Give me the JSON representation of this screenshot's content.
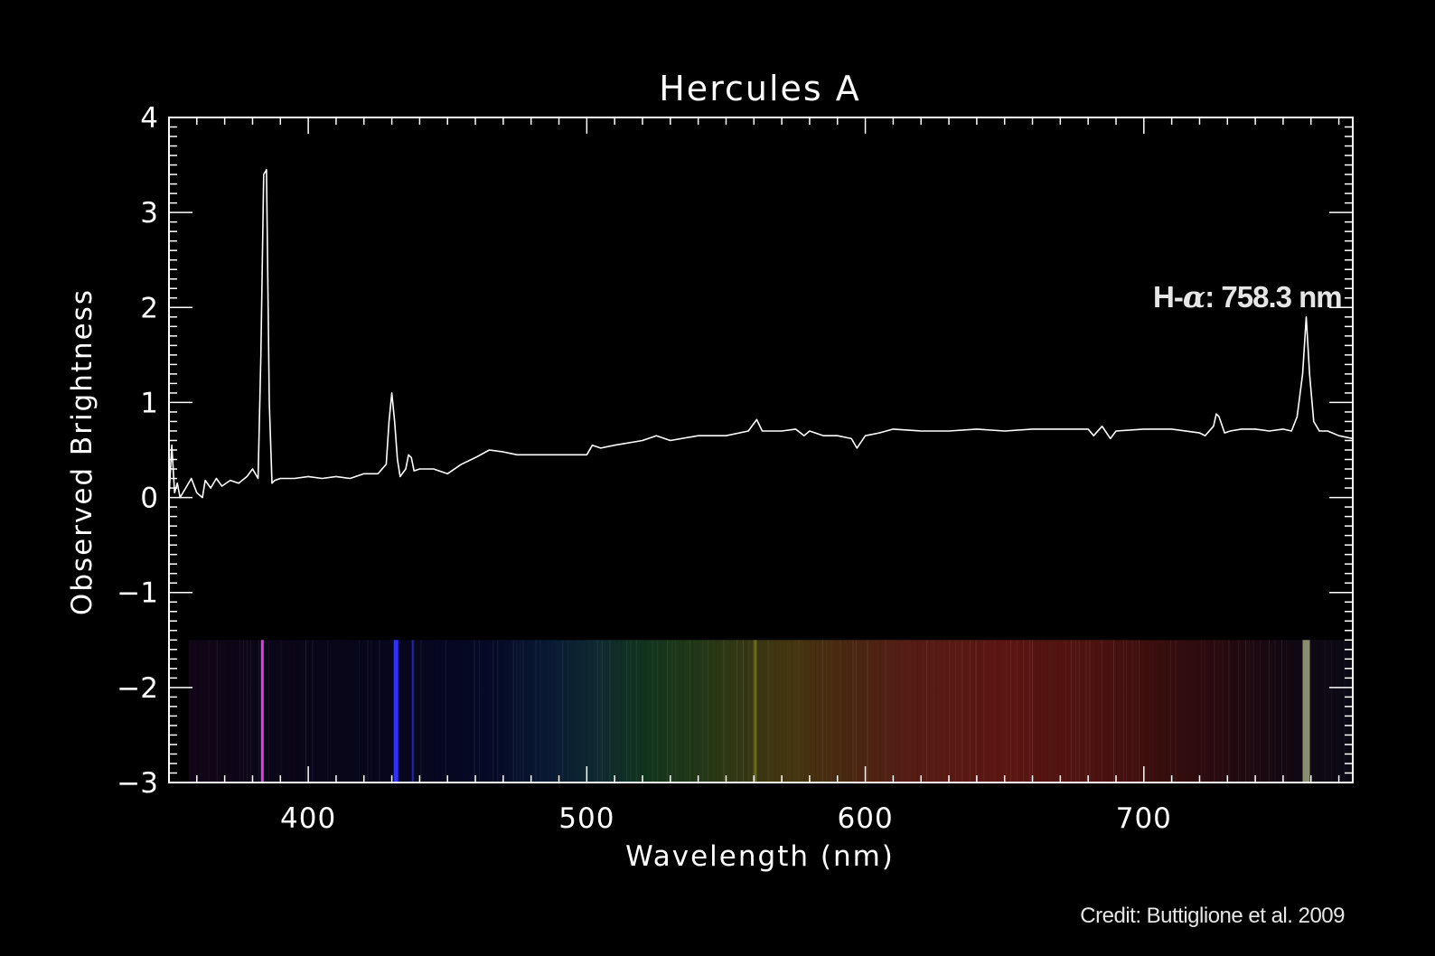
{
  "chart_data": {
    "type": "line",
    "title": "Hercules A",
    "xlabel": "Wavelength (nm)",
    "ylabel": "Observed Brightness",
    "xlim": [
      350,
      775
    ],
    "ylim": [
      -3,
      4
    ],
    "xticks": [
      400,
      500,
      600,
      700
    ],
    "xtick_labels": [
      "400",
      "500",
      "600",
      "700"
    ],
    "yticks": [
      -3,
      -2,
      -1,
      0,
      1,
      2,
      3,
      4
    ],
    "ytick_labels": [
      "−3",
      "−2",
      "−1",
      "0",
      "1",
      "2",
      "3",
      "4"
    ],
    "grid": false,
    "annotation": {
      "text_prefix": "H-",
      "text_symbol": "α",
      "text_suffix": ": 758.3 nm",
      "x": 758.3,
      "y": 1.9
    },
    "series": [
      {
        "x": [
          350,
          351,
          352,
          353,
          354,
          356,
          358,
          360,
          362,
          363,
          365,
          367,
          369,
          372,
          375,
          378,
          380,
          382,
          383,
          384,
          385,
          386,
          387,
          388,
          390,
          395,
          400,
          405,
          410,
          415,
          420,
          425,
          428,
          429,
          430,
          431,
          432,
          433,
          435,
          436,
          437,
          438,
          440,
          445,
          450,
          455,
          460,
          465,
          470,
          475,
          480,
          490,
          500,
          502,
          505,
          510,
          520,
          525,
          530,
          540,
          550,
          558,
          561,
          563,
          565,
          570,
          575,
          578,
          580,
          585,
          590,
          595,
          597,
          600,
          605,
          610,
          620,
          630,
          640,
          650,
          660,
          670,
          680,
          682,
          685,
          688,
          690,
          700,
          710,
          720,
          722,
          725,
          726,
          727,
          729,
          731,
          735,
          740,
          745,
          750,
          753,
          755,
          757,
          758.3,
          759.5,
          761,
          763,
          766,
          770,
          775
        ],
        "y": [
          0.0,
          0.55,
          0.05,
          0.15,
          0.0,
          0.1,
          0.2,
          0.05,
          0.0,
          0.18,
          0.1,
          0.2,
          0.12,
          0.18,
          0.15,
          0.22,
          0.3,
          0.2,
          1.5,
          3.4,
          3.45,
          1.0,
          0.15,
          0.18,
          0.2,
          0.2,
          0.22,
          0.2,
          0.22,
          0.2,
          0.25,
          0.25,
          0.35,
          0.8,
          1.1,
          0.8,
          0.4,
          0.22,
          0.3,
          0.45,
          0.42,
          0.28,
          0.3,
          0.3,
          0.25,
          0.35,
          0.42,
          0.5,
          0.48,
          0.45,
          0.45,
          0.45,
          0.45,
          0.55,
          0.52,
          0.55,
          0.6,
          0.65,
          0.6,
          0.65,
          0.65,
          0.7,
          0.82,
          0.7,
          0.7,
          0.7,
          0.72,
          0.65,
          0.7,
          0.65,
          0.65,
          0.62,
          0.52,
          0.65,
          0.68,
          0.72,
          0.7,
          0.7,
          0.72,
          0.7,
          0.72,
          0.72,
          0.72,
          0.65,
          0.75,
          0.62,
          0.7,
          0.72,
          0.72,
          0.68,
          0.65,
          0.75,
          0.88,
          0.85,
          0.68,
          0.7,
          0.72,
          0.72,
          0.7,
          0.72,
          0.7,
          0.85,
          1.3,
          1.9,
          1.3,
          0.8,
          0.7,
          0.7,
          0.65,
          0.62
        ]
      }
    ],
    "spectrum_strip": {
      "ymin": -3,
      "ymax": -1.5,
      "xmin": 357,
      "bright_lines_nm": [
        383.5,
        431.5,
        437.5,
        560.5,
        758.3
      ]
    }
  },
  "credit": "Credit: Buttiglione et al. 2009"
}
